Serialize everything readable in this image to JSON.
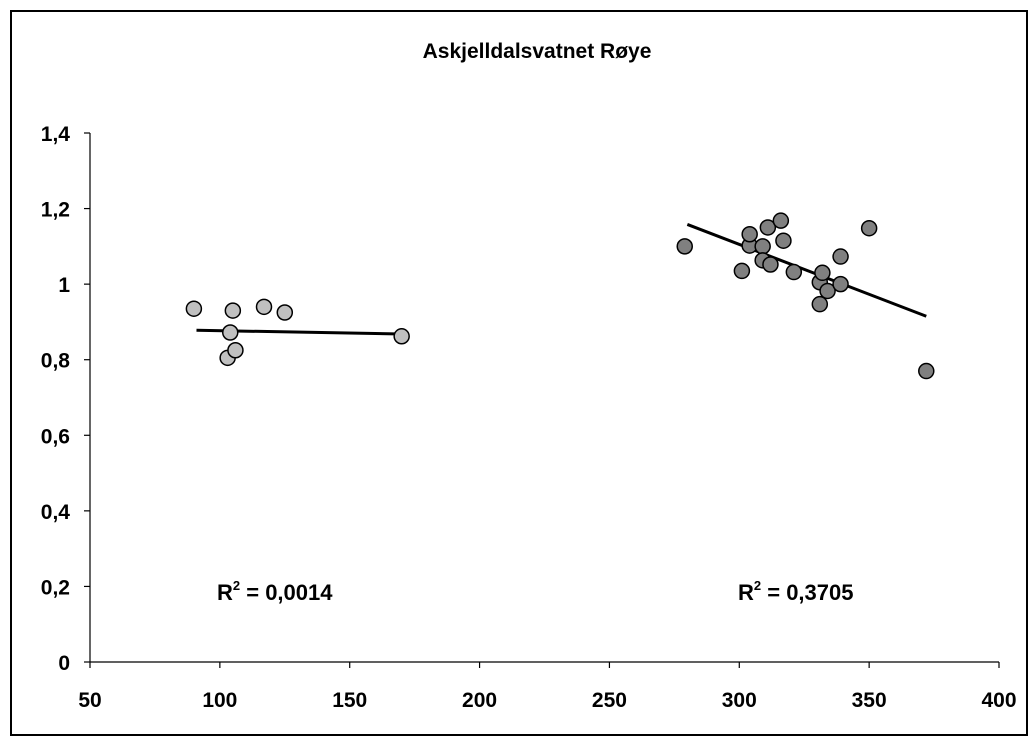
{
  "chart_data": {
    "type": "scatter",
    "title": "Askjelldalsvatnet Røye",
    "xlabel": "",
    "ylabel": "",
    "xlim": [
      50,
      400
    ],
    "ylim": [
      0,
      1.4
    ],
    "x_ticks": [
      "50",
      "100",
      "150",
      "200",
      "250",
      "300",
      "350",
      "400"
    ],
    "y_ticks": [
      "0",
      "0,2",
      "0,4",
      "0,6",
      "0,8",
      "1",
      "1,2",
      "1,4"
    ],
    "grid": false,
    "legend": "none",
    "series": [
      {
        "color": "#c0c0c0",
        "points": [
          [
            90,
            0.935
          ],
          [
            103,
            0.805
          ],
          [
            104,
            0.872
          ],
          [
            105,
            0.93
          ],
          [
            106,
            0.825
          ],
          [
            117,
            0.94
          ],
          [
            125,
            0.925
          ],
          [
            170,
            0.862
          ]
        ],
        "trendline": {
          "x": [
            91,
            170
          ],
          "y": [
            0.878,
            0.868
          ]
        },
        "r2_label": {
          "prefix": "R",
          "sup": "2",
          "text": " = 0,0014"
        }
      },
      {
        "color": "#808080",
        "points": [
          [
            279,
            1.1
          ],
          [
            301,
            1.035
          ],
          [
            304,
            1.102
          ],
          [
            304,
            1.132
          ],
          [
            309,
            1.1
          ],
          [
            309,
            1.063
          ],
          [
            311,
            1.15
          ],
          [
            312,
            1.052
          ],
          [
            316,
            1.168
          ],
          [
            317,
            1.115
          ],
          [
            321,
            1.032
          ],
          [
            331,
            1.005
          ],
          [
            331,
            0.947
          ],
          [
            332,
            1.03
          ],
          [
            334,
            0.982
          ],
          [
            339,
            1.0
          ],
          [
            339,
            1.073
          ],
          [
            350,
            1.148
          ],
          [
            372,
            0.77
          ]
        ],
        "trendline": {
          "x": [
            280,
            372
          ],
          "y": [
            1.158,
            0.915
          ]
        },
        "r2_label": {
          "prefix": "R",
          "sup": "2",
          "text": " = 0,3705"
        }
      }
    ]
  }
}
